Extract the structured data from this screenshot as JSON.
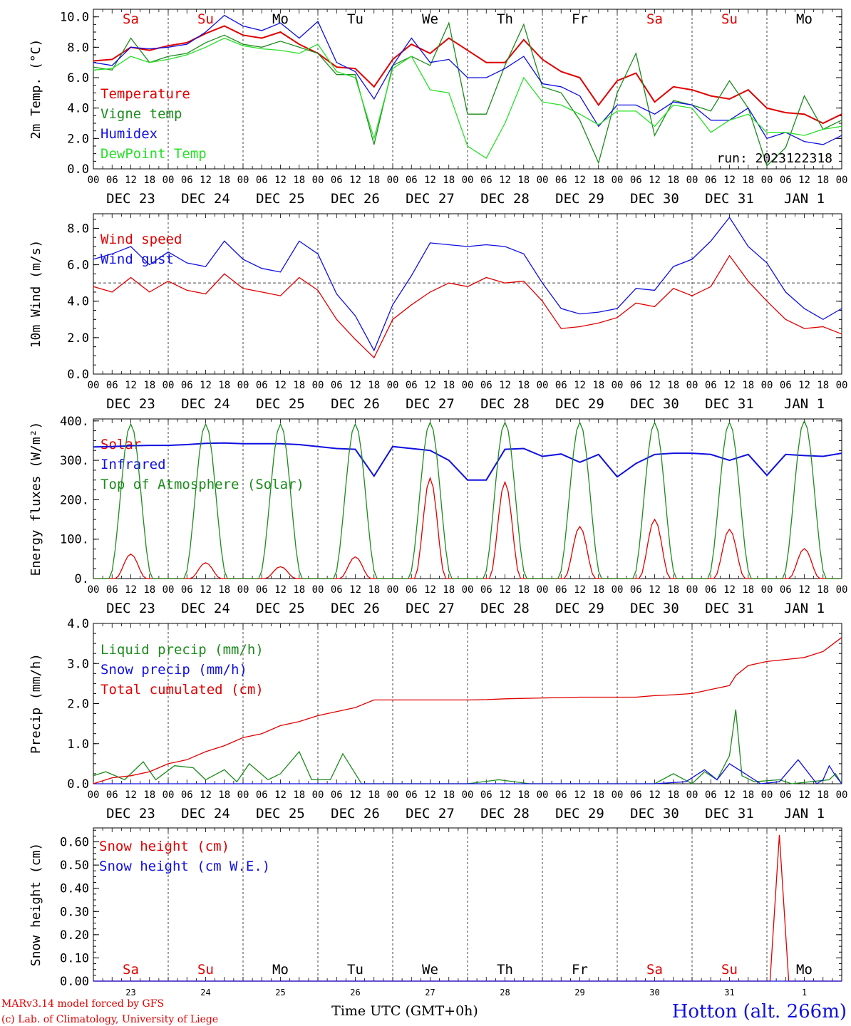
{
  "run_label": "run: 2023122318",
  "hour_ticks": [
    "00",
    "06",
    "12",
    "18"
  ],
  "date_labels": [
    "DEC 23",
    "DEC 24",
    "DEC 25",
    "DEC 26",
    "DEC 27",
    "DEC 28",
    "DEC 29",
    "DEC 30",
    "DEC 31",
    "JAN  1"
  ],
  "weekdays": [
    {
      "label": "Sa",
      "color": "#e00000"
    },
    {
      "label": "Su",
      "color": "#e00000"
    },
    {
      "label": "Mo",
      "color": "#000000"
    },
    {
      "label": "Tu",
      "color": "#000000"
    },
    {
      "label": "We",
      "color": "#000000"
    },
    {
      "label": "Th",
      "color": "#000000"
    },
    {
      "label": "Fr",
      "color": "#000000"
    },
    {
      "label": "Sa",
      "color": "#e00000"
    },
    {
      "label": "Su",
      "color": "#e00000"
    },
    {
      "label": "Mo",
      "color": "#000000"
    }
  ],
  "day_numbers": [
    "23",
    "24",
    "25",
    "26",
    "27",
    "28",
    "29",
    "30",
    "31",
    "1"
  ],
  "footer": {
    "model_line": "MARv3.14 model forced by GFS",
    "lab_line": "(c) Lab. of Climatology, University of Liege",
    "xaxis_title": "Time UTC (GMT+0h)",
    "station": "Hotton (alt. 266m)"
  },
  "chart_data": [
    {
      "type": "line",
      "ylabel": "2m Temp. (°C)",
      "ylim": [
        0,
        10.5
      ],
      "yticks": [
        "0.0",
        "2.0",
        "4.0",
        "6.0",
        "8.0",
        "10.0"
      ],
      "x_unit": "hours since DEC 23 00 UTC",
      "series": [
        {
          "name": "Temperature",
          "color": "#e00000",
          "x": [
            0,
            6,
            12,
            18,
            24,
            30,
            36,
            42,
            48,
            54,
            60,
            66,
            72,
            78,
            84,
            90,
            96,
            102,
            108,
            114,
            120,
            126,
            132,
            138,
            144,
            150,
            156,
            162,
            168,
            174,
            180,
            186,
            192,
            198,
            204,
            210,
            216,
            222,
            228,
            234,
            240
          ],
          "y": [
            7.1,
            7.2,
            8.0,
            7.8,
            8.1,
            8.3,
            8.9,
            9.4,
            8.8,
            8.6,
            9.0,
            8.2,
            7.6,
            6.7,
            6.6,
            5.4,
            7.2,
            8.2,
            7.6,
            8.6,
            7.8,
            7.0,
            7.0,
            8.5,
            7.2,
            6.4,
            6.0,
            4.2,
            5.8,
            6.3,
            4.4,
            5.4,
            5.2,
            4.8,
            4.6,
            5.2,
            4.0,
            3.7,
            3.6,
            3.0,
            3.6
          ]
        },
        {
          "name": "Vigne temp",
          "color": "#1c8c1c",
          "x": [
            0,
            6,
            12,
            18,
            24,
            30,
            36,
            42,
            48,
            54,
            60,
            66,
            72,
            78,
            84,
            90,
            96,
            102,
            108,
            114,
            120,
            126,
            132,
            138,
            144,
            150,
            156,
            162,
            168,
            174,
            180,
            186,
            192,
            198,
            204,
            210,
            216,
            222,
            228,
            234,
            240
          ],
          "y": [
            6.7,
            6.5,
            8.6,
            7.0,
            7.4,
            7.6,
            8.3,
            8.8,
            8.2,
            8.0,
            8.4,
            8.0,
            7.6,
            6.2,
            6.2,
            1.6,
            6.8,
            7.4,
            6.8,
            9.6,
            3.6,
            3.6,
            6.8,
            9.5,
            5.4,
            5.0,
            3.2,
            0.4,
            5.0,
            7.6,
            2.2,
            4.5,
            4.2,
            3.8,
            5.8,
            4.0,
            0.2,
            1.4,
            4.8,
            2.6,
            3.2
          ]
        },
        {
          "name": "Humidex",
          "color": "#1010e0",
          "x": [
            0,
            6,
            12,
            18,
            24,
            30,
            36,
            42,
            48,
            54,
            60,
            66,
            72,
            78,
            84,
            90,
            96,
            102,
            108,
            114,
            120,
            126,
            132,
            138,
            144,
            150,
            156,
            162,
            168,
            174,
            180,
            186,
            192,
            198,
            204,
            210,
            216,
            222,
            228,
            234,
            240
          ],
          "y": [
            7.0,
            6.8,
            8.0,
            7.9,
            8.0,
            8.2,
            9.0,
            10.1,
            9.4,
            9.1,
            9.6,
            8.6,
            9.7,
            7.0,
            6.4,
            4.6,
            6.8,
            8.6,
            7.0,
            7.2,
            6.0,
            6.0,
            6.6,
            7.4,
            5.6,
            5.4,
            4.8,
            2.8,
            4.2,
            4.2,
            3.6,
            4.4,
            4.2,
            3.2,
            3.2,
            4.0,
            2.0,
            2.4,
            1.8,
            1.6,
            2.2
          ]
        },
        {
          "name": "DewPoint Temp",
          "color": "#28e028",
          "x": [
            0,
            6,
            12,
            18,
            24,
            30,
            36,
            42,
            48,
            54,
            60,
            66,
            72,
            78,
            84,
            90,
            96,
            102,
            108,
            114,
            120,
            126,
            132,
            138,
            144,
            150,
            156,
            162,
            168,
            174,
            180,
            186,
            192,
            198,
            204,
            210,
            216,
            222,
            228,
            234,
            240
          ],
          "y": [
            6.5,
            6.6,
            7.4,
            7.0,
            7.2,
            7.5,
            8.0,
            8.6,
            8.1,
            7.9,
            7.8,
            7.6,
            8.2,
            6.4,
            6.0,
            2.0,
            6.6,
            7.4,
            5.2,
            5.0,
            1.5,
            0.7,
            3.0,
            6.0,
            4.4,
            4.2,
            3.6,
            2.9,
            3.8,
            3.8,
            2.8,
            4.2,
            4.0,
            2.4,
            3.2,
            3.6,
            2.4,
            2.4,
            2.2,
            2.6,
            2.8
          ]
        }
      ]
    },
    {
      "type": "line",
      "ylabel": "10m Wind (m/s)",
      "ylim": [
        0,
        8.8
      ],
      "yticks": [
        "0.0",
        "2.0",
        "4.0",
        "6.0",
        "8.0"
      ],
      "reference_line": 5.0,
      "series": [
        {
          "name": "Wind speed",
          "color": "#e00000",
          "x": [
            0,
            6,
            12,
            18,
            24,
            30,
            36,
            42,
            48,
            54,
            60,
            66,
            72,
            78,
            84,
            90,
            96,
            102,
            108,
            114,
            120,
            126,
            132,
            138,
            144,
            150,
            156,
            162,
            168,
            174,
            180,
            186,
            192,
            198,
            204,
            210,
            216,
            222,
            228,
            234,
            240
          ],
          "y": [
            4.8,
            4.5,
            5.3,
            4.5,
            5.1,
            4.6,
            4.4,
            5.5,
            4.7,
            4.5,
            4.3,
            5.3,
            4.6,
            3.0,
            1.9,
            0.9,
            3.0,
            3.8,
            4.5,
            5.0,
            4.8,
            5.3,
            5.0,
            5.1,
            4.0,
            2.5,
            2.6,
            2.8,
            3.1,
            3.9,
            3.7,
            4.7,
            4.3,
            4.8,
            6.5,
            5.1,
            4.0,
            3.0,
            2.5,
            2.6,
            2.2
          ]
        },
        {
          "name": "Wind gust",
          "color": "#1010e0",
          "x": [
            0,
            6,
            12,
            18,
            24,
            30,
            36,
            42,
            48,
            54,
            60,
            66,
            72,
            78,
            84,
            90,
            96,
            102,
            108,
            114,
            120,
            126,
            132,
            138,
            144,
            150,
            156,
            162,
            168,
            174,
            180,
            186,
            192,
            198,
            204,
            210,
            216,
            222,
            228,
            234,
            240
          ],
          "y": [
            6.3,
            6.6,
            7.0,
            6.0,
            6.7,
            6.1,
            5.9,
            7.3,
            6.3,
            5.8,
            5.6,
            7.3,
            6.6,
            4.4,
            3.2,
            1.3,
            3.8,
            5.4,
            7.2,
            7.1,
            7.0,
            7.1,
            7.0,
            6.6,
            5.0,
            3.6,
            3.3,
            3.4,
            3.6,
            4.7,
            4.6,
            5.9,
            6.3,
            7.3,
            8.6,
            7.0,
            6.1,
            4.5,
            3.6,
            3.0,
            3.6
          ]
        }
      ]
    },
    {
      "type": "line",
      "ylabel": "Energy fluxes (W/m²)",
      "ylim": [
        0,
        405
      ],
      "yticks": [
        "0.",
        "100.",
        "200.",
        "300.",
        "400."
      ],
      "series": [
        {
          "name": "Solar",
          "color": "#e00000",
          "peaks": [
            62,
            40,
            30,
            55,
            255,
            245,
            132,
            150,
            125,
            76
          ]
        },
        {
          "name": "Infrared",
          "color": "#1010e0",
          "x": [
            0,
            6,
            12,
            18,
            24,
            30,
            36,
            42,
            48,
            54,
            60,
            66,
            72,
            78,
            84,
            90,
            96,
            102,
            108,
            114,
            120,
            126,
            132,
            138,
            144,
            150,
            156,
            162,
            168,
            174,
            180,
            186,
            192,
            198,
            204,
            210,
            216,
            222,
            228,
            234,
            240
          ],
          "y": [
            334,
            335,
            337,
            338,
            338,
            340,
            343,
            344,
            342,
            342,
            342,
            340,
            335,
            330,
            328,
            260,
            335,
            330,
            325,
            300,
            250,
            250,
            328,
            330,
            310,
            316,
            295,
            315,
            258,
            292,
            315,
            318,
            318,
            315,
            300,
            315,
            262,
            315,
            312,
            310,
            318
          ]
        },
        {
          "name": "Top of Atmosphere (Solar)",
          "color": "#1c8c1c",
          "peaks": [
            392,
            392,
            392,
            392,
            396,
            396,
            396,
            396,
            396,
            400
          ]
        }
      ]
    },
    {
      "type": "line",
      "ylabel": "Precip (mm/h)",
      "ylim": [
        0,
        4.0
      ],
      "yticks": [
        "0.0",
        "1.0",
        "2.0",
        "3.0",
        "4.0"
      ],
      "series": [
        {
          "name": "Liquid precip (mm/h)",
          "color": "#1c8c1c",
          "x": [
            0,
            4,
            10,
            16,
            20,
            26,
            32,
            36,
            42,
            46,
            50,
            56,
            60,
            66,
            70,
            76,
            80,
            86,
            96,
            120,
            130,
            140,
            180,
            186,
            192,
            196,
            200,
            204,
            206,
            208,
            212,
            220,
            224,
            230,
            236,
            238,
            240
          ],
          "y": [
            0.2,
            0.3,
            0.1,
            0.55,
            0.1,
            0.45,
            0.4,
            0.1,
            0.35,
            0.05,
            0.5,
            0.1,
            0.25,
            0.8,
            0.1,
            0.1,
            0.75,
            0.0,
            0.0,
            0.0,
            0.1,
            0.0,
            0.0,
            0.25,
            0.0,
            0.3,
            0.1,
            0.7,
            1.85,
            0.2,
            0.05,
            0.1,
            0.0,
            0.05,
            0.1,
            0.25,
            0.0
          ]
        },
        {
          "name": "Snow precip (mm/h)",
          "color": "#1010e0",
          "x": [
            0,
            180,
            190,
            196,
            200,
            204,
            208,
            214,
            220,
            226,
            232,
            234,
            236,
            238,
            240
          ],
          "y": [
            0.0,
            0.0,
            0.05,
            0.35,
            0.1,
            0.5,
            0.3,
            0.0,
            0.05,
            0.6,
            0.0,
            0.1,
            0.45,
            0.2,
            0.0
          ]
        },
        {
          "name": "Total cumulated (cm)",
          "color": "#e00000",
          "x": [
            0,
            6,
            12,
            18,
            24,
            30,
            36,
            42,
            48,
            54,
            60,
            66,
            72,
            78,
            84,
            90,
            96,
            102,
            108,
            114,
            120,
            126,
            132,
            138,
            144,
            150,
            156,
            162,
            168,
            174,
            180,
            186,
            192,
            198,
            204,
            206,
            210,
            216,
            222,
            228,
            234,
            240
          ],
          "y": [
            0.0,
            0.15,
            0.2,
            0.3,
            0.5,
            0.6,
            0.8,
            0.95,
            1.15,
            1.25,
            1.45,
            1.55,
            1.7,
            1.8,
            1.9,
            2.09,
            2.09,
            2.09,
            2.09,
            2.09,
            2.09,
            2.1,
            2.12,
            2.13,
            2.14,
            2.15,
            2.16,
            2.16,
            2.16,
            2.16,
            2.2,
            2.22,
            2.25,
            2.35,
            2.45,
            2.7,
            2.95,
            3.05,
            3.1,
            3.15,
            3.3,
            3.65
          ]
        }
      ]
    },
    {
      "type": "line",
      "ylabel": "Snow height (cm)",
      "ylim": [
        0,
        0.66
      ],
      "yticks": [
        "0.00",
        "0.10",
        "0.20",
        "0.30",
        "0.40",
        "0.50",
        "0.60"
      ],
      "series": [
        {
          "name": "Snow height (cm)",
          "color": "#e00000",
          "x": [
            0,
            217,
            220,
            223,
            240
          ],
          "y": [
            0,
            0,
            0.63,
            0,
            0
          ]
        },
        {
          "name": "Snow height (cm W.E.)",
          "color": "#1010e0",
          "x": [
            0,
            240
          ],
          "y": [
            0,
            0
          ]
        }
      ]
    }
  ]
}
